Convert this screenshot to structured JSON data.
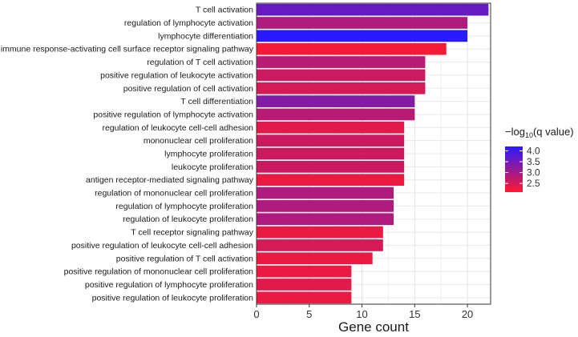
{
  "chart_data": {
    "type": "bar",
    "orientation": "horizontal",
    "title": "",
    "xlabel": "Gene count",
    "ylabel": "",
    "xlim": [
      0,
      22.2
    ],
    "xticks": [
      0,
      5,
      10,
      15,
      20
    ],
    "grid": true,
    "categories": [
      "T cell activation",
      "regulation of lymphocyte activation",
      "lymphocyte differentiation",
      "immune response-activating cell surface receptor signaling pathway",
      "regulation of T cell activation",
      "positive regulation of leukocyte activation",
      "positive regulation of cell activation",
      "T cell differentiation",
      "positive regulation of lymphocyte activation",
      "regulation of leukocyte cell-cell adhesion",
      "mononuclear cell proliferation",
      "lymphocyte proliferation",
      "leukocyte proliferation",
      "antigen receptor-mediated signaling pathway",
      "regulation of mononuclear cell proliferation",
      "regulation of lymphocyte proliferation",
      "regulation of leukocyte proliferation",
      "T cell receptor signaling pathway",
      "positive regulation of leukocyte cell-cell adhesion",
      "positive regulation of T cell activation",
      "positive regulation of mononuclear cell proliferation",
      "positive regulation of lymphocyte proliferation",
      "positive regulation of leukocyte proliferation"
    ],
    "values": [
      22,
      20,
      20,
      18,
      16,
      16,
      16,
      15,
      15,
      14,
      14,
      14,
      14,
      14,
      13,
      13,
      13,
      12,
      12,
      11,
      9,
      9,
      9
    ],
    "color_values": [
      3.6,
      2.9,
      4.2,
      2.2,
      2.8,
      2.6,
      2.5,
      3.3,
      2.8,
      2.4,
      2.6,
      2.6,
      2.6,
      2.3,
      2.9,
      2.9,
      2.9,
      2.3,
      2.5,
      2.3,
      2.3,
      2.4,
      2.3
    ],
    "legend": {
      "title_prefix": "−log",
      "title_sub": "10",
      "title_suffix": "(q value)",
      "ticks": [
        4.0,
        3.5,
        3.0,
        2.5
      ],
      "tick_labels": [
        "4.0",
        "3.5",
        "3.0",
        "2.5"
      ],
      "range": [
        2.1,
        4.2
      ],
      "color_low": "#ff1a2e",
      "color_high": "#2a1aff",
      "placement": "right"
    }
  }
}
